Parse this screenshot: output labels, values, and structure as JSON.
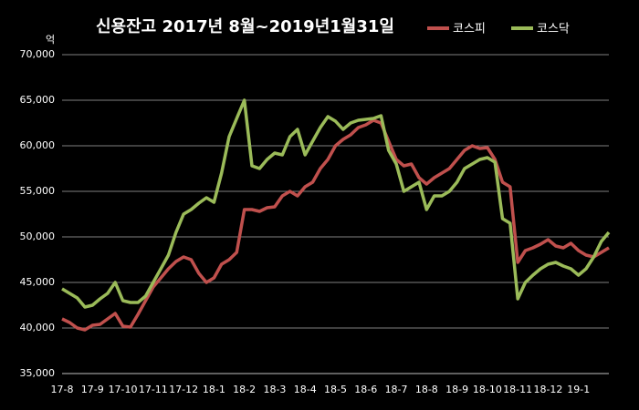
{
  "chart_data": {
    "type": "line",
    "title": "신용잔고 2017년 8월~2019년1월31일",
    "y_unit": "억",
    "categories": [
      "17-8",
      null,
      null,
      null,
      "17-9",
      null,
      null,
      null,
      "17-10",
      null,
      null,
      null,
      "17-11",
      null,
      null,
      null,
      "17-12",
      null,
      null,
      null,
      "18-1",
      null,
      null,
      null,
      "18-2",
      null,
      null,
      null,
      "18-3",
      null,
      null,
      null,
      "18-4",
      null,
      null,
      null,
      "18-5",
      null,
      null,
      null,
      "18-6",
      null,
      null,
      null,
      "18-7",
      null,
      null,
      null,
      "18-8",
      null,
      null,
      null,
      "18-9",
      null,
      null,
      null,
      "18-10",
      null,
      null,
      null,
      "18-11",
      null,
      null,
      null,
      "18-12",
      null,
      null,
      null,
      "19-1",
      null,
      null,
      null,
      null
    ],
    "series": [
      {
        "name": "코스피",
        "color": "#c0504d",
        "values": [
          41000,
          40600,
          40000,
          39800,
          40300,
          40400,
          41000,
          41600,
          40200,
          40100,
          41500,
          43000,
          44500,
          45500,
          46500,
          47300,
          47800,
          47500,
          46000,
          45000,
          45500,
          47000,
          47500,
          48300,
          53000,
          53000,
          52800,
          53200,
          53300,
          54500,
          55000,
          54500,
          55500,
          56000,
          57500,
          58500,
          60000,
          60700,
          61200,
          62000,
          62300,
          62800,
          62500,
          60500,
          58500,
          57800,
          58000,
          56500,
          55800,
          56500,
          57000,
          57500,
          58500,
          59500,
          60000,
          59700,
          59800,
          58500,
          56000,
          55500,
          47200,
          48500,
          48800,
          49200,
          49700,
          49000,
          48800,
          49300,
          48500,
          48000,
          47800,
          48300,
          48800
        ]
      },
      {
        "name": "코스닥",
        "color": "#9bbb59",
        "values": [
          44300,
          43800,
          43300,
          42300,
          42500,
          43200,
          43800,
          45000,
          43000,
          42800,
          42800,
          43500,
          45000,
          46500,
          48000,
          50500,
          52500,
          53000,
          53700,
          54300,
          53800,
          57000,
          61000,
          63000,
          65000,
          57800,
          57500,
          58500,
          59200,
          59000,
          61000,
          61800,
          59000,
          60500,
          62000,
          63200,
          62700,
          61800,
          62500,
          62800,
          62900,
          63000,
          63300,
          59500,
          58000,
          55000,
          55500,
          56000,
          53000,
          54500,
          54500,
          55000,
          56000,
          57500,
          58000,
          58500,
          58700,
          58200,
          52000,
          51500,
          43200,
          45000,
          45800,
          46500,
          47000,
          47200,
          46800,
          46500,
          45800,
          46500,
          47800,
          49500,
          50500
        ]
      }
    ],
    "ylim": [
      35000,
      70000
    ],
    "yticks": [
      {
        "value": 35000,
        "label": "35,000"
      },
      {
        "value": 40000,
        "label": "40,000"
      },
      {
        "value": 45000,
        "label": "45,000"
      },
      {
        "value": 50000,
        "label": "50,000"
      },
      {
        "value": 55000,
        "label": "55,000"
      },
      {
        "value": 60000,
        "label": "60,000"
      },
      {
        "value": 65000,
        "label": "65,000"
      },
      {
        "value": 70000,
        "label": "70,000"
      }
    ],
    "grid": true,
    "legend": "top-right"
  }
}
